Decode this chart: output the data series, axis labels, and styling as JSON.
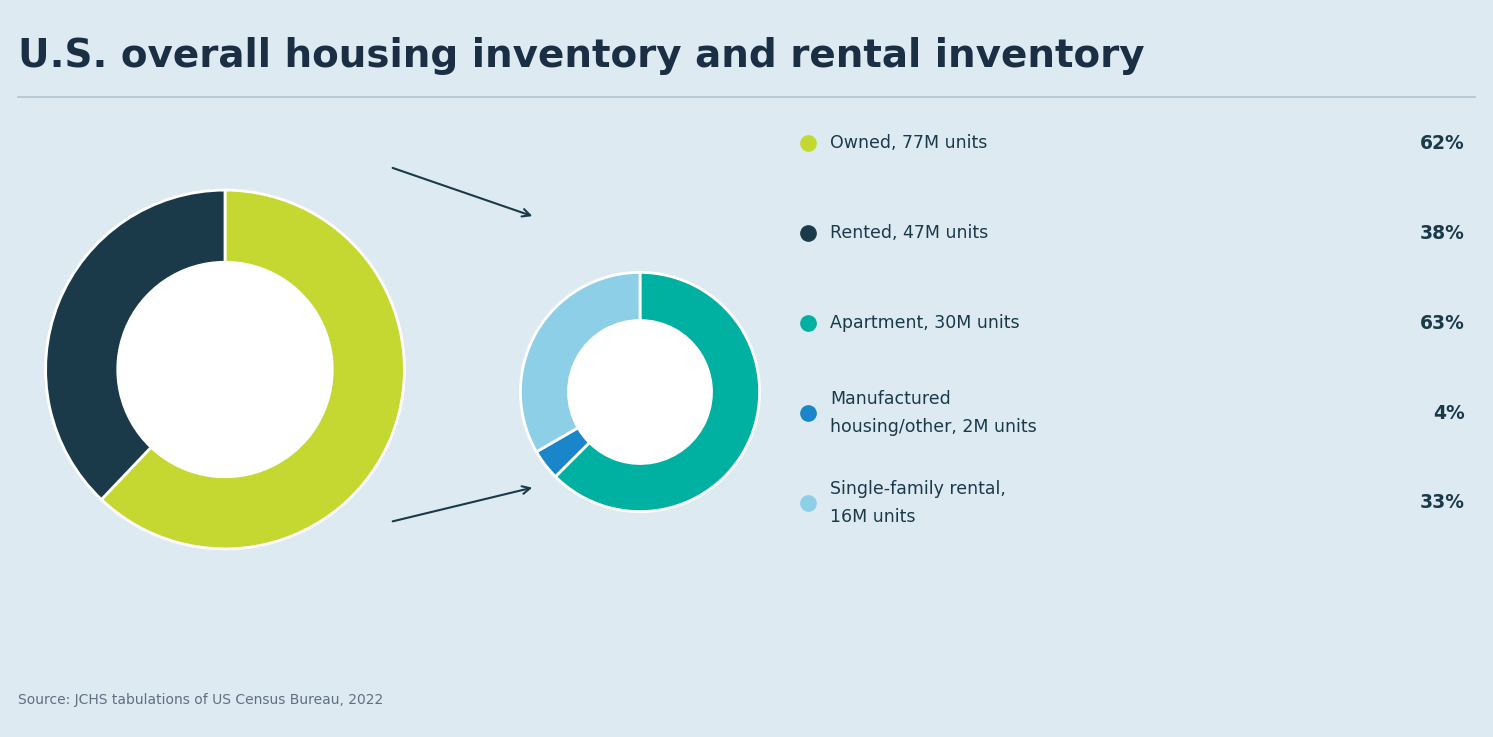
{
  "title": "U.S. overall housing inventory and rental inventory",
  "background_color": "#ddeaf2",
  "title_color": "#1a2e44",
  "source_text": "Source: JCHS tabulations of US Census Bureau, 2022",
  "donut1": {
    "values": [
      77,
      47
    ],
    "colors": [
      "#c5d832",
      "#1a3a4a"
    ],
    "start_angle": 90
  },
  "donut2": {
    "values": [
      30,
      2,
      16
    ],
    "colors": [
      "#00b0a0",
      "#1a85c8",
      "#8ecfe8"
    ],
    "start_angle": 90
  },
  "legend_items": [
    {
      "label": "Owned, 77M units",
      "pct": "62%",
      "color": "#c5d832",
      "multiline": false
    },
    {
      "label": "Rented, 47M units",
      "pct": "38%",
      "color": "#1a3a4a",
      "multiline": false
    },
    {
      "label": "Apartment, 30M units",
      "pct": "63%",
      "color": "#00b0a0",
      "multiline": false
    },
    {
      "label": "Manufactured\nhousing/other, 2M units",
      "pct": "4%",
      "color": "#1a85c8",
      "multiline": true
    },
    {
      "label": "Single-family rental,\n16M units",
      "pct": "33%",
      "color": "#8ecfe8",
      "multiline": true
    }
  ]
}
